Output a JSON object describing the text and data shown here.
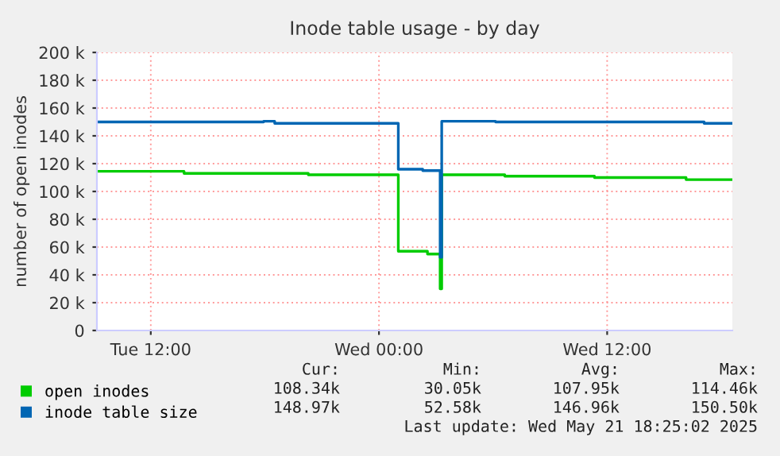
{
  "chart_data": {
    "type": "step",
    "title": "Inode table usage - by day",
    "ylabel": "number of open inodes",
    "xlim": [
      "2025-05-20T09:10",
      "2025-05-21T18:35"
    ],
    "xticks": [
      {
        "value": "2025-05-20T12:00",
        "label": "Tue 12:00"
      },
      {
        "value": "2025-05-21T00:00",
        "label": "Wed 00:00"
      },
      {
        "value": "2025-05-21T12:00",
        "label": "Wed 12:00"
      }
    ],
    "ylim": [
      0,
      200000
    ],
    "yticks": [
      {
        "value": 0,
        "label": "0"
      },
      {
        "value": 20000,
        "label": "20 k"
      },
      {
        "value": 40000,
        "label": "40 k"
      },
      {
        "value": 60000,
        "label": "60 k"
      },
      {
        "value": 80000,
        "label": "80 k"
      },
      {
        "value": 100000,
        "label": "100 k"
      },
      {
        "value": 120000,
        "label": "120 k"
      },
      {
        "value": 140000,
        "label": "140 k"
      },
      {
        "value": 160000,
        "label": "160 k"
      },
      {
        "value": 180000,
        "label": "180 k"
      },
      {
        "value": 200000,
        "label": "200 k"
      }
    ],
    "grid": true,
    "legend": "bottom",
    "series": [
      {
        "name": "open inodes",
        "color": "#00cc00",
        "x": [
          "2025-05-20T09:10",
          "2025-05-20T13:45",
          "2025-05-20T20:17",
          "2025-05-21T01:01",
          "2025-05-21T02:33",
          "2025-05-21T03:13",
          "2025-05-21T03:18",
          "2025-05-21T06:37",
          "2025-05-21T11:20",
          "2025-05-21T16:09",
          "2025-05-21T18:35"
        ],
        "values": [
          114500,
          113000,
          112000,
          57000,
          55000,
          30000,
          112000,
          111000,
          110000,
          108500,
          108500
        ]
      },
      {
        "name": "inode table size",
        "color": "#0066b3",
        "x": [
          "2025-05-20T09:10",
          "2025-05-20T17:56",
          "2025-05-20T18:31",
          "2025-05-21T01:01",
          "2025-05-21T02:18",
          "2025-05-21T03:13",
          "2025-05-21T03:18",
          "2025-05-21T06:08",
          "2025-05-21T17:06",
          "2025-05-21T18:35"
        ],
        "values": [
          150000,
          150500,
          149000,
          116000,
          115000,
          52600,
          150500,
          150000,
          149000,
          149000
        ]
      }
    ],
    "annotations": [
      "Cur:",
      "Min:",
      "Avg:",
      "Max:",
      "108.34k",
      "30.05k",
      "107.95k",
      "114.46k",
      "148.97k",
      "52.58k",
      "146.96k",
      "150.50k",
      "Last update: Wed May 21 18:25:02 2025"
    ]
  }
}
